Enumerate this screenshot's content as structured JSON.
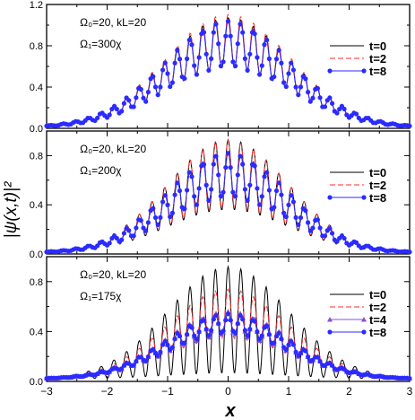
{
  "figure": {
    "ylabel": "|ψ(x,t)|²",
    "xlabel": "x"
  },
  "chart_data": [
    {
      "type": "line",
      "panel": "top",
      "annotation_line1": "Ω₀=20, kL=20",
      "annotation_line2": "Ω₁=300χ",
      "xlim": [
        -3,
        3
      ],
      "ylim": [
        0,
        1.2
      ],
      "yticks": [
        0.0,
        0.4,
        0.8,
        1.2
      ],
      "ytick_labels": [
        "0.0",
        "0.4",
        "0.8",
        "1.2"
      ],
      "xticks": [
        -3,
        -2,
        -1,
        0,
        1,
        2,
        3
      ],
      "grid": false,
      "legend_position": "right",
      "envelope": {
        "A0": 1.06,
        "sigma": 1.05,
        "mod": 0.45,
        "per": 0.42,
        "floor": 0.01
      },
      "series": [
        {
          "name": "t=0",
          "style": "solid",
          "color": "#000000",
          "marker": "none",
          "scale": 1.0,
          "mod": 0.45
        },
        {
          "name": "t=2",
          "style": "dashed",
          "color": "#ff2a2a",
          "marker": "none",
          "scale": 1.03,
          "mod": 0.47
        },
        {
          "name": "t=8",
          "style": "solid",
          "color": "#2b2bff",
          "marker": "circle",
          "scale": 0.97,
          "mod": 0.44
        }
      ]
    },
    {
      "type": "line",
      "panel": "middle",
      "annotation_line1": "Ω₀=20, kL=20",
      "annotation_line2": "Ω₁=200χ",
      "xlim": [
        -3,
        3
      ],
      "ylim": [
        0,
        1.0
      ],
      "yticks": [
        0.0,
        0.4,
        0.8
      ],
      "ytick_labels": [
        "0.0",
        "0.4",
        "0.8"
      ],
      "xticks": [
        -3,
        -2,
        -1,
        0,
        1,
        2,
        3
      ],
      "grid": false,
      "legend_position": "right",
      "envelope": {
        "A0": 0.92,
        "sigma": 1.0,
        "mod": 0.55,
        "per": 0.42,
        "floor": 0.01
      },
      "series": [
        {
          "name": "t=0",
          "style": "solid",
          "color": "#000000",
          "marker": "none",
          "scale": 1.0,
          "mod": 0.62
        },
        {
          "name": "t=2",
          "style": "dashed",
          "color": "#ff2a2a",
          "marker": "none",
          "scale": 1.0,
          "mod": 0.6
        },
        {
          "name": "t=8",
          "style": "solid",
          "color": "#2b2bff",
          "marker": "circle",
          "scale": 0.88,
          "mod": 0.45
        }
      ]
    },
    {
      "type": "line",
      "panel": "bottom",
      "annotation_line1": "Ω₀=20, kL=20",
      "annotation_line2": "Ω₁=175χ",
      "xlim": [
        -3,
        3
      ],
      "ylim": [
        0,
        1.0
      ],
      "yticks": [
        0.0,
        0.4,
        0.8
      ],
      "ytick_labels": [
        "0.0",
        "0.4",
        "0.8"
      ],
      "xticks": [
        -3,
        -2,
        -1,
        0,
        1,
        2,
        3
      ],
      "xtick_labels": [
        "−3",
        "−2",
        "−1",
        "0",
        "1",
        "2",
        "3"
      ],
      "grid": false,
      "legend_position": "right",
      "envelope": {
        "A0": 0.9,
        "sigma": 1.0,
        "mod": 0.7,
        "per": 0.42,
        "floor": 0.02
      },
      "series": [
        {
          "name": "t=0",
          "style": "solid",
          "color": "#000000",
          "marker": "none",
          "scale": 1.0,
          "mod": 0.95
        },
        {
          "name": "t=2",
          "style": "dashed",
          "color": "#ff2a2a",
          "marker": "none",
          "scale": 0.8,
          "mod": 0.55
        },
        {
          "name": "t=4",
          "style": "solid",
          "color": "#8a4fd8",
          "marker": "triangle",
          "scale": 0.6,
          "mod": 0.35
        },
        {
          "name": "t=8",
          "style": "solid",
          "color": "#2b2bff",
          "marker": "circle",
          "scale": 0.58,
          "mod": 0.3
        }
      ]
    }
  ]
}
